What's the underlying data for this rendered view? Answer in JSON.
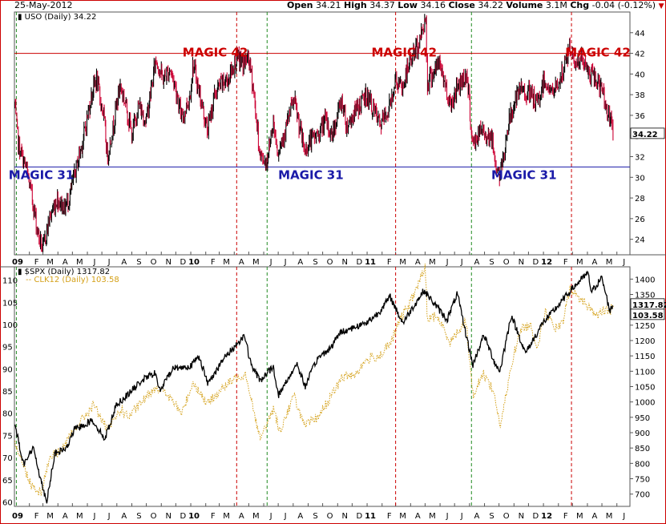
{
  "header": {
    "date": "25-May-2012",
    "open_label": "Open",
    "open": "34.21",
    "high_label": "High",
    "high": "34.37",
    "low_label": "Low",
    "low": "34.16",
    "close_label": "Close",
    "close": "34.22",
    "volume_label": "Volume",
    "volume": "3.1M",
    "chg_label": "Chg",
    "chg": "-0.04 (-0.12%)",
    "chg_arrow": "▼"
  },
  "colors": {
    "frame": "#cc0000",
    "uso_up": "#000000",
    "uso_down": "#cc0033",
    "spx": "#000000",
    "clk": "#d4a017",
    "magic42": "#cc0000",
    "magic31": "#1a1aa8",
    "red_vline": "#cc0000",
    "green_vline": "#228b22"
  },
  "chart_data": [
    {
      "type": "candlestick",
      "legend": "USO (Daily) 34.22",
      "last_value_label": "34.22",
      "y_ticks": [
        "24",
        "26",
        "28",
        "30",
        "32",
        "34",
        "36",
        "38",
        "40",
        "42",
        "44"
      ],
      "ylim": [
        22.5,
        46
      ],
      "x_tick_labels": [
        "09",
        "F",
        "M",
        "A",
        "M",
        "J",
        "J",
        "A",
        "S",
        "O",
        "N",
        "D",
        "10",
        "F",
        "M",
        "A",
        "M",
        "J",
        "J",
        "A",
        "S",
        "O",
        "N",
        "D",
        "11",
        "F",
        "M",
        "A",
        "M",
        "J",
        "J",
        "A",
        "S",
        "O",
        "N",
        "D",
        "12",
        "F",
        "M",
        "A",
        "M",
        "J"
      ],
      "x_range": [
        "2009-01-01",
        "2012-06-28"
      ],
      "annotations": [
        {
          "text": "MAGIC 42",
          "x": "2009-12-15",
          "y": 42
        },
        {
          "text": "MAGIC 42",
          "x": "2011-01-10",
          "y": 42
        },
        {
          "text": "MAGIC 42",
          "x": "2012-02-15",
          "y": 42
        },
        {
          "text": "MAGIC 31",
          "x": "2008-12-20",
          "y": 31
        },
        {
          "text": "MAGIC 31",
          "x": "2010-07-01",
          "y": 31
        },
        {
          "text": "MAGIC 31",
          "x": "2011-09-15",
          "y": 31
        }
      ],
      "hlines": [
        42,
        31
      ],
      "series_points": [
        [
          "2009-01-02",
          37
        ],
        [
          "2009-01-10",
          33
        ],
        [
          "2009-01-25",
          31
        ],
        [
          "2009-02-05",
          28.5
        ],
        [
          "2009-02-20",
          24.5
        ],
        [
          "2009-03-01",
          23
        ],
        [
          "2009-03-15",
          26
        ],
        [
          "2009-03-31",
          28
        ],
        [
          "2009-04-15",
          27
        ],
        [
          "2009-04-25",
          28
        ],
        [
          "2009-05-10",
          31
        ],
        [
          "2009-05-25",
          34
        ],
        [
          "2009-06-10",
          38
        ],
        [
          "2009-06-20",
          39.5
        ],
        [
          "2009-07-05",
          36
        ],
        [
          "2009-07-13",
          32
        ],
        [
          "2009-07-25",
          35
        ],
        [
          "2009-08-08",
          39
        ],
        [
          "2009-08-20",
          37
        ],
        [
          "2009-09-02",
          34
        ],
        [
          "2009-09-15",
          37
        ],
        [
          "2009-10-01",
          35.5
        ],
        [
          "2009-10-10",
          38
        ],
        [
          "2009-10-21",
          41.5
        ],
        [
          "2009-11-05",
          39.5
        ],
        [
          "2009-11-20",
          40.5
        ],
        [
          "2009-12-05",
          38
        ],
        [
          "2009-12-14",
          35.5
        ],
        [
          "2009-12-31",
          38
        ],
        [
          "2010-01-06",
          41
        ],
        [
          "2010-01-20",
          38
        ],
        [
          "2010-02-05",
          34.5
        ],
        [
          "2010-02-20",
          38
        ],
        [
          "2010-03-05",
          39
        ],
        [
          "2010-03-20",
          39.5
        ],
        [
          "2010-04-06",
          41.5
        ],
        [
          "2010-04-20",
          41
        ],
        [
          "2010-05-01",
          41.5
        ],
        [
          "2010-05-10",
          39
        ],
        [
          "2010-05-25",
          32
        ],
        [
          "2010-06-08",
          31.5
        ],
        [
          "2010-06-21",
          35.5
        ],
        [
          "2010-07-01",
          32.5
        ],
        [
          "2010-07-15",
          34.5
        ],
        [
          "2010-08-03",
          37.5
        ],
        [
          "2010-08-25",
          32.5
        ],
        [
          "2010-09-05",
          33.5
        ],
        [
          "2010-09-20",
          34
        ],
        [
          "2010-10-07",
          35.5
        ],
        [
          "2010-10-20",
          34
        ],
        [
          "2010-11-10",
          37.5
        ],
        [
          "2010-11-20",
          35
        ],
        [
          "2010-12-10",
          36.5
        ],
        [
          "2010-12-31",
          38
        ],
        [
          "2011-01-15",
          36.5
        ],
        [
          "2011-01-28",
          35
        ],
        [
          "2011-02-15",
          36.5
        ],
        [
          "2011-03-01",
          39.5
        ],
        [
          "2011-03-15",
          38.5
        ],
        [
          "2011-04-01",
          41.5
        ],
        [
          "2011-04-15",
          42.5
        ],
        [
          "2011-05-03",
          45.5
        ],
        [
          "2011-05-06",
          39
        ],
        [
          "2011-05-15",
          40
        ],
        [
          "2011-06-01",
          41
        ],
        [
          "2011-06-23",
          37
        ],
        [
          "2011-07-10",
          39
        ],
        [
          "2011-07-27",
          40
        ],
        [
          "2011-08-08",
          33
        ],
        [
          "2011-08-25",
          34.5
        ],
        [
          "2011-09-15",
          34
        ],
        [
          "2011-09-26",
          31
        ],
        [
          "2011-10-04",
          30
        ],
        [
          "2011-10-20",
          35
        ],
        [
          "2011-11-01",
          37
        ],
        [
          "2011-11-16",
          38.5
        ],
        [
          "2011-12-05",
          38
        ],
        [
          "2011-12-20",
          37
        ],
        [
          "2012-01-03",
          39.5
        ],
        [
          "2012-01-20",
          38
        ],
        [
          "2012-02-10",
          40
        ],
        [
          "2012-02-24",
          42.5
        ],
        [
          "2012-03-10",
          41
        ],
        [
          "2012-03-20",
          41.5
        ],
        [
          "2012-04-05",
          40
        ],
        [
          "2012-04-20",
          39.5
        ],
        [
          "2012-05-05",
          38
        ],
        [
          "2012-05-15",
          36
        ],
        [
          "2012-05-25",
          34.2
        ]
      ]
    },
    {
      "type": "line",
      "series": [
        {
          "name": "$SPX (Daily) 1317.82",
          "last_value_label": "1317.82",
          "points": [
            [
              "2009-01-02",
              930
            ],
            [
              "2009-01-20",
              800
            ],
            [
              "2009-02-10",
              850
            ],
            [
              "2009-03-01",
              720
            ],
            [
              "2009-03-09",
              677
            ],
            [
              "2009-03-26",
              830
            ],
            [
              "2009-04-20",
              850
            ],
            [
              "2009-05-05",
              910
            ],
            [
              "2009-06-12",
              940
            ],
            [
              "2009-07-08",
              880
            ],
            [
              "2009-07-31",
              990
            ],
            [
              "2009-08-28",
              1030
            ],
            [
              "2009-09-22",
              1070
            ],
            [
              "2009-10-19",
              1095
            ],
            [
              "2009-10-30",
              1036
            ],
            [
              "2009-11-25",
              1110
            ],
            [
              "2009-12-31",
              1115
            ],
            [
              "2010-01-19",
              1150
            ],
            [
              "2010-02-05",
              1060
            ],
            [
              "2010-03-15",
              1150
            ],
            [
              "2010-04-01",
              1178
            ],
            [
              "2010-04-23",
              1217
            ],
            [
              "2010-05-06",
              1120
            ],
            [
              "2010-05-25",
              1070
            ],
            [
              "2010-06-21",
              1115
            ],
            [
              "2010-07-02",
              1022
            ],
            [
              "2010-08-09",
              1125
            ],
            [
              "2010-08-26",
              1050
            ],
            [
              "2010-09-20",
              1140
            ],
            [
              "2010-10-20",
              1180
            ],
            [
              "2010-11-05",
              1225
            ],
            [
              "2010-12-31",
              1258
            ],
            [
              "2011-01-25",
              1290
            ],
            [
              "2011-02-18",
              1343
            ],
            [
              "2011-03-16",
              1257
            ],
            [
              "2011-04-29",
              1363
            ],
            [
              "2011-06-16",
              1267
            ],
            [
              "2011-07-07",
              1353
            ],
            [
              "2011-08-08",
              1120
            ],
            [
              "2011-08-31",
              1218
            ],
            [
              "2011-09-22",
              1130
            ],
            [
              "2011-10-03",
              1099
            ],
            [
              "2011-10-27",
              1284
            ],
            [
              "2011-11-25",
              1158
            ],
            [
              "2011-12-31",
              1257
            ],
            [
              "2012-01-31",
              1312
            ],
            [
              "2012-02-29",
              1368
            ],
            [
              "2012-04-02",
              1419
            ],
            [
              "2012-04-10",
              1358
            ],
            [
              "2012-05-01",
              1405
            ],
            [
              "2012-05-18",
              1295
            ],
            [
              "2012-05-25",
              1317
            ]
          ]
        },
        {
          "name": "CLK12 (Daily) 103.58",
          "last_value_label": "103.58",
          "points": [
            [
              "2009-01-02",
              74
            ],
            [
              "2009-01-20",
              68
            ],
            [
              "2009-02-05",
              64
            ],
            [
              "2009-02-25",
              62
            ],
            [
              "2009-03-15",
              70
            ],
            [
              "2009-04-10",
              72
            ],
            [
              "2009-05-10",
              77
            ],
            [
              "2009-06-15",
              82
            ],
            [
              "2009-07-13",
              76
            ],
            [
              "2009-08-10",
              81
            ],
            [
              "2009-08-25",
              79
            ],
            [
              "2009-09-18",
              82
            ],
            [
              "2009-10-21",
              86
            ],
            [
              "2009-11-15",
              84
            ],
            [
              "2009-12-14",
              80
            ],
            [
              "2010-01-06",
              87
            ],
            [
              "2010-02-05",
              82
            ],
            [
              "2010-03-01",
              85
            ],
            [
              "2010-04-05",
              88
            ],
            [
              "2010-04-25",
              89
            ],
            [
              "2010-05-25",
              74
            ],
            [
              "2010-06-21",
              81
            ],
            [
              "2010-07-05",
              76
            ],
            [
              "2010-08-03",
              84
            ],
            [
              "2010-08-25",
              77
            ],
            [
              "2010-09-20",
              79
            ],
            [
              "2010-10-20",
              84
            ],
            [
              "2010-11-10",
              88
            ],
            [
              "2010-12-10",
              89
            ],
            [
              "2010-12-31",
              92
            ],
            [
              "2011-01-28",
              93
            ],
            [
              "2011-02-20",
              96
            ],
            [
              "2011-03-10",
              101
            ],
            [
              "2011-04-01",
              105
            ],
            [
              "2011-05-02",
              113
            ],
            [
              "2011-05-06",
              101
            ],
            [
              "2011-05-25",
              102
            ],
            [
              "2011-06-23",
              96
            ],
            [
              "2011-07-25",
              101
            ],
            [
              "2011-08-08",
              84
            ],
            [
              "2011-08-30",
              89
            ],
            [
              "2011-09-20",
              85
            ],
            [
              "2011-10-04",
              77
            ],
            [
              "2011-10-31",
              93
            ],
            [
              "2011-11-16",
              99
            ],
            [
              "2011-12-05",
              100
            ],
            [
              "2011-12-20",
              95
            ],
            [
              "2012-01-05",
              103
            ],
            [
              "2012-01-25",
              99
            ],
            [
              "2012-02-10",
              100
            ],
            [
              "2012-02-24",
              108
            ],
            [
              "2012-03-15",
              106
            ],
            [
              "2012-04-05",
              104
            ],
            [
              "2012-04-20",
              102
            ],
            [
              "2012-05-05",
              103
            ],
            [
              "2012-05-25",
              103.6
            ]
          ]
        }
      ],
      "y_ticks_left": [
        "60",
        "65",
        "70",
        "75",
        "80",
        "85",
        "90",
        "95",
        "100",
        "105",
        "110"
      ],
      "ylim_left": [
        59,
        113
      ],
      "y_ticks_right": [
        "700",
        "750",
        "800",
        "850",
        "900",
        "950",
        "1000",
        "1050",
        "1100",
        "1150",
        "1200",
        "1250",
        "1300",
        "1350",
        "1400"
      ],
      "ylim_right": [
        660,
        1440
      ],
      "x_tick_labels": [
        "09",
        "F",
        "M",
        "A",
        "M",
        "J",
        "J",
        "A",
        "S",
        "O",
        "N",
        "D",
        "10",
        "F",
        "M",
        "A",
        "M",
        "J",
        "J",
        "A",
        "S",
        "O",
        "N",
        "D",
        "11",
        "F",
        "M",
        "A",
        "M",
        "J",
        "J",
        "A",
        "S",
        "O",
        "N",
        "D",
        "12",
        "F",
        "M",
        "A",
        "M",
        "J"
      ],
      "x_range": [
        "2009-01-01",
        "2012-06-28"
      ]
    }
  ],
  "vlines": {
    "red": [
      "2010-04-06",
      "2011-03-01",
      "2012-02-28"
    ],
    "green": [
      "2009-01-05",
      "2010-06-08",
      "2011-08-05"
    ]
  }
}
